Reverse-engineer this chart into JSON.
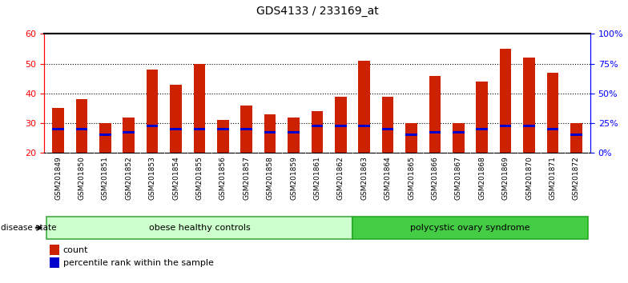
{
  "title": "GDS4133 / 233169_at",
  "samples": [
    "GSM201849",
    "GSM201850",
    "GSM201851",
    "GSM201852",
    "GSM201853",
    "GSM201854",
    "GSM201855",
    "GSM201856",
    "GSM201857",
    "GSM201858",
    "GSM201859",
    "GSM201861",
    "GSM201862",
    "GSM201863",
    "GSM201864",
    "GSM201865",
    "GSM201866",
    "GSM201867",
    "GSM201868",
    "GSM201869",
    "GSM201870",
    "GSM201871",
    "GSM201872"
  ],
  "count_values": [
    35,
    38,
    30,
    32,
    48,
    43,
    50,
    31,
    36,
    33,
    32,
    34,
    39,
    51,
    39,
    30,
    46,
    30,
    44,
    55,
    52,
    47,
    30
  ],
  "percentile_values": [
    28,
    28,
    26,
    27,
    29,
    28,
    28,
    28,
    28,
    27,
    27,
    29,
    29,
    29,
    28,
    26,
    27,
    27,
    28,
    29,
    29,
    28,
    26
  ],
  "group1_label": "obese healthy controls",
  "group1_count": 13,
  "group2_label": "polycystic ovary syndrome",
  "group2_count": 10,
  "disease_state_label": "disease state",
  "bar_color": "#cc2200",
  "percentile_color": "#0000cc",
  "group1_color": "#ccffcc",
  "group2_color": "#44cc44",
  "ylim_left": [
    20,
    60
  ],
  "yticks_left": [
    20,
    30,
    40,
    50,
    60
  ],
  "ylim_right": [
    0,
    100
  ],
  "yticks_right": [
    0,
    25,
    50,
    75,
    100
  ],
  "legend_count": "count",
  "legend_percentile": "percentile rank within the sample",
  "background_color": "#ffffff",
  "tick_area_color": "#cccccc"
}
